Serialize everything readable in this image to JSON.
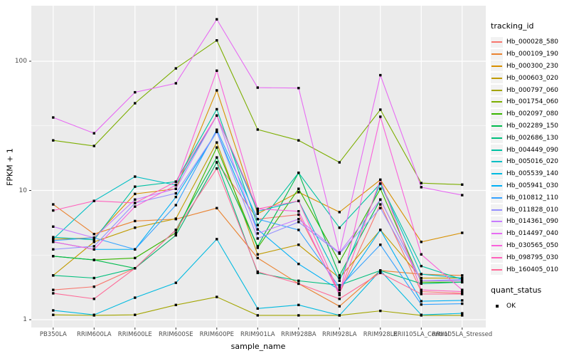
{
  "figure": {
    "panel_background": "#EBEBEB",
    "grid_color": "#FFFFFF",
    "tick_label_color": "#4D4D4D",
    "point_color": "#000000"
  },
  "axes": {
    "x_title": "sample_name",
    "y_title": "FPKM + 1",
    "y_tick_labels": [
      "1",
      "10",
      "100"
    ]
  },
  "legend": {
    "tracking_title": "tracking_id",
    "quant_title": "quant_status",
    "quant_items": [
      {
        "label": "OK",
        "marker": "black-square"
      }
    ]
  },
  "chart_data": {
    "type": "line",
    "title": "",
    "xlabel": "sample_name",
    "ylabel": "FPKM + 1",
    "y_scale": "log10",
    "y_major_ticks": [
      1,
      10,
      100
    ],
    "y_minor_gridlines": [
      3.1623,
      31.623
    ],
    "y_range_displayed": [
      0.87,
      270
    ],
    "grid": true,
    "legend_position": "right",
    "point_marker": {
      "shape": "square",
      "color": "#000000",
      "meaning": "quant_status OK"
    },
    "categories": [
      "PB350LA",
      "RRIM600LA",
      "RRIM600LE",
      "RRIM600SE",
      "RRIM600PE",
      "RRIM901LA",
      "RRIM928BA",
      "RRIM928LA",
      "RRIM928LE",
      "RRII105LA_Control",
      "RRII105LA_Stressed"
    ],
    "series": [
      {
        "name": "Hb_000028_580",
        "color": "#F8766D",
        "values": [
          1.7,
          1.8,
          2.5,
          4.5,
          16.5,
          6.0,
          6.5,
          1.6,
          7.8,
          1.65,
          1.6
        ]
      },
      {
        "name": "Hb_000109_190",
        "color": "#EA8331",
        "values": [
          7.8,
          4.6,
          5.8,
          6.0,
          7.3,
          3.0,
          1.9,
          1.27,
          2.4,
          2.25,
          2.2
        ]
      },
      {
        "name": "Hb_000300_230",
        "color": "#D89000",
        "values": [
          4.2,
          4.3,
          9.4,
          10.3,
          59.5,
          6.6,
          9.7,
          6.8,
          12.1,
          4.0,
          4.7
        ]
      },
      {
        "name": "Hb_000603_020",
        "color": "#C09B00",
        "values": [
          2.2,
          4.0,
          5.15,
          6.05,
          23.5,
          3.2,
          3.8,
          2.1,
          4.95,
          2.1,
          2.1
        ]
      },
      {
        "name": "Hb_000797_060",
        "color": "#A3A500",
        "values": [
          1.09,
          1.08,
          1.09,
          1.3,
          1.5,
          1.08,
          1.08,
          1.08,
          1.17,
          1.08,
          1.08
        ]
      },
      {
        "name": "Hb_001754_060",
        "color": "#7CAE00",
        "values": [
          24.4,
          22.1,
          47.3,
          88.0,
          145.0,
          29.6,
          24.4,
          16.5,
          42.2,
          11.4,
          11.1
        ]
      },
      {
        "name": "Hb_002097_080",
        "color": "#39B600",
        "values": [
          3.1,
          2.9,
          3.0,
          4.7,
          21.5,
          3.6,
          10.3,
          2.8,
          10.3,
          1.95,
          1.95
        ]
      },
      {
        "name": "Hb_002289_150",
        "color": "#00BB4E",
        "values": [
          3.1,
          2.9,
          2.5,
          4.95,
          18.0,
          3.7,
          13.7,
          2.2,
          8.5,
          2.0,
          2.0
        ]
      },
      {
        "name": "Hb_002686_130",
        "color": "#00BF7D",
        "values": [
          2.2,
          2.1,
          2.5,
          4.5,
          16.5,
          2.3,
          2.0,
          1.85,
          2.4,
          1.9,
          1.95
        ]
      },
      {
        "name": "Hb_004449_090",
        "color": "#00C1A3",
        "values": [
          4.35,
          4.15,
          10.7,
          11.7,
          42.5,
          5.4,
          13.7,
          5.15,
          11.3,
          2.6,
          2.05
        ]
      },
      {
        "name": "Hb_005016_020",
        "color": "#00BFC4",
        "values": [
          4.2,
          8.3,
          12.8,
          11.0,
          38.0,
          6.9,
          8.3,
          2.0,
          11.3,
          2.25,
          2.1
        ]
      },
      {
        "name": "Hb_005539_140",
        "color": "#00BAE0",
        "values": [
          1.18,
          1.09,
          1.48,
          1.93,
          4.2,
          1.22,
          1.3,
          1.08,
          2.4,
          1.09,
          1.12
        ]
      },
      {
        "name": "Hb_005941_030",
        "color": "#00B0F6",
        "values": [
          4.0,
          3.5,
          3.5,
          8.9,
          28.4,
          5.0,
          2.7,
          1.7,
          4.95,
          1.39,
          1.41
        ]
      },
      {
        "name": "Hb_010812_110",
        "color": "#35A2FF",
        "values": [
          4.1,
          4.3,
          3.5,
          7.7,
          29.5,
          6.0,
          4.95,
          1.78,
          3.8,
          1.31,
          1.33
        ]
      },
      {
        "name": "Hb_011828_010",
        "color": "#9590FF",
        "values": [
          3.5,
          3.7,
          8.0,
          9.5,
          28.4,
          4.25,
          5.7,
          3.25,
          7.3,
          2.0,
          2.05
        ]
      },
      {
        "name": "Hb_014361_090",
        "color": "#C77CFF",
        "values": [
          5.25,
          4.3,
          8.5,
          10.3,
          38.0,
          4.65,
          6.0,
          3.3,
          8.5,
          2.0,
          2.0
        ]
      },
      {
        "name": "Hb_014497_040",
        "color": "#E76BF3",
        "values": [
          36.7,
          27.7,
          57.5,
          67.5,
          211.0,
          62.5,
          62.0,
          3.3,
          78.0,
          10.6,
          9.2
        ]
      },
      {
        "name": "Hb_030565_050",
        "color": "#FA62DB",
        "values": [
          4.0,
          3.5,
          7.5,
          11.0,
          84.5,
          7.2,
          6.9,
          1.55,
          37.2,
          3.2,
          1.7
        ]
      },
      {
        "name": "Hb_098795_030",
        "color": "#FF62BC",
        "values": [
          7.0,
          8.3,
          8.0,
          11.7,
          38.0,
          7.2,
          8.3,
          1.6,
          12.1,
          1.7,
          1.65
        ]
      },
      {
        "name": "Hb_160405_010",
        "color": "#FF6A98",
        "values": [
          1.6,
          1.45,
          2.5,
          4.95,
          14.8,
          2.35,
          1.9,
          1.45,
          2.3,
          1.58,
          1.58
        ]
      }
    ]
  }
}
